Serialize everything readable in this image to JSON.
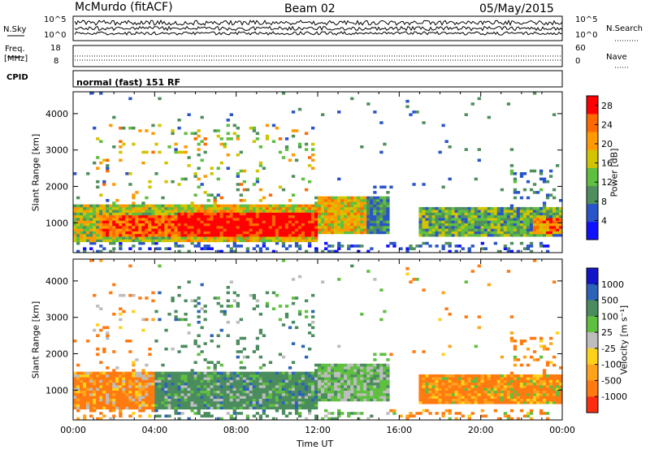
{
  "header": {
    "station": "McMurdo (fitACF)",
    "beam": "Beam 02",
    "date": "05/May/2015"
  },
  "noise_panel": {
    "left_label": "N.Sky",
    "right_label": "N.Search",
    "left_ticks": [
      "10^5",
      "10^0"
    ],
    "right_ticks": [
      "10^5",
      "10^0"
    ]
  },
  "freq_panel": {
    "left_label_1": "Freq.",
    "left_label_2": "[MHz]",
    "right_label": "Nave",
    "left_ticks": [
      "18",
      "8"
    ],
    "right_ticks": [
      "60",
      "0"
    ]
  },
  "cpid": {
    "label": "CPID",
    "value": "normal (fast) 151 RF"
  },
  "colors": {
    "power": [
      "#1010ff",
      "#2a55c8",
      "#4f8f5e",
      "#5fbf3f",
      "#d2c400",
      "#ff9a00",
      "#ff6a00",
      "#ff0000"
    ],
    "velocity": [
      "#1515c8",
      "#2c63b8",
      "#4b8c5e",
      "#5fbf3f",
      "#bdbdbd",
      "#ffd21a",
      "#ffa41a",
      "#ff7a10",
      "#ff2d10"
    ]
  },
  "chart_data": [
    {
      "type": "heatmap",
      "title": "Power",
      "xlabel": "",
      "ylabel": "Slant Range [km]",
      "x_range_hours": [
        0,
        24
      ],
      "ylim": [
        180,
        4600
      ],
      "y_ticks": [
        "1000",
        "2000",
        "3000",
        "4000"
      ],
      "x_ticks": [
        "00:00",
        "04:00",
        "08:00",
        "12:00",
        "16:00",
        "20:00",
        "00:00"
      ],
      "colorbar": {
        "label": "Power [dB]",
        "ticks": [
          "4",
          "8",
          "12",
          "16",
          "20",
          "24",
          "28"
        ],
        "range": [
          0,
          30
        ]
      },
      "regions": [
        {
          "x0": 0.0,
          "x1": 12.0,
          "y0": 480,
          "y1": 1500,
          "level": "high"
        },
        {
          "x0": 12.0,
          "x1": 15.5,
          "y0": 700,
          "y1": 1700,
          "level": "medium"
        },
        {
          "x0": 17.0,
          "x1": 24.0,
          "y0": 600,
          "y1": 1400,
          "level": "low-medium"
        }
      ]
    },
    {
      "type": "heatmap",
      "title": "Velocity",
      "xlabel": "Time UT",
      "ylabel": "Slant Range [km]",
      "x_range_hours": [
        0,
        24
      ],
      "ylim": [
        180,
        4600
      ],
      "y_ticks": [
        "1000",
        "2000",
        "3000",
        "4000"
      ],
      "x_ticks": [
        "00:00",
        "04:00",
        "08:00",
        "12:00",
        "16:00",
        "20:00",
        "00:00"
      ],
      "colorbar": {
        "label": "Velocity [m s^-1]",
        "ticks": [
          "1000",
          "500",
          "100",
          "25",
          "-25",
          "-100",
          "-500",
          "-1000"
        ]
      },
      "regions": [
        {
          "x0": 0.0,
          "x1": 4.0,
          "y0": 600,
          "y1": 1500,
          "level": "negative"
        },
        {
          "x0": 4.0,
          "x1": 12.0,
          "y0": 600,
          "y1": 1500,
          "level": "positive-low"
        },
        {
          "x0": 17.0,
          "x1": 24.0,
          "y0": 700,
          "y1": 1400,
          "level": "negative"
        }
      ]
    }
  ],
  "axes_titles": {
    "time": "Time UT",
    "range_label": "Slant Range [km]",
    "power_cb_label": "Power [dB]",
    "velocity_cb_label": "Velocity [m s⁻¹]"
  }
}
